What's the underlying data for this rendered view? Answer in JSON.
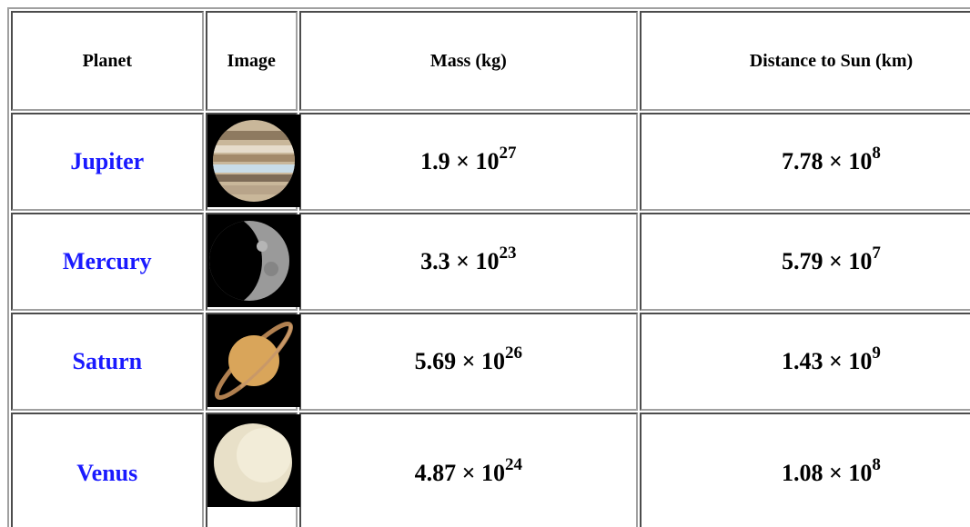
{
  "table": {
    "header": [
      "Planet",
      "Image",
      "Mass (kg)",
      "Distance to Sun (km)"
    ],
    "rows": [
      {
        "planet": "Jupiter",
        "mass": {
          "base": "1.9 × 10",
          "exponent": "27"
        },
        "distance": {
          "base": "7.78 × 10",
          "exponent": "8"
        }
      },
      {
        "planet": "Mercury",
        "mass": {
          "base": "3.3 × 10",
          "exponent": "23"
        },
        "distance": {
          "base": "5.79 × 10",
          "exponent": "7"
        }
      },
      {
        "planet": "Saturn",
        "mass": {
          "base": "5.69 × 10",
          "exponent": "26"
        },
        "distance": {
          "base": "1.43 × 10",
          "exponent": "9"
        }
      },
      {
        "planet": "Venus",
        "mass": {
          "base": "4.87 × 10",
          "exponent": "24"
        },
        "distance": {
          "base": "1.08 × 10",
          "exponent": "8"
        }
      }
    ]
  }
}
